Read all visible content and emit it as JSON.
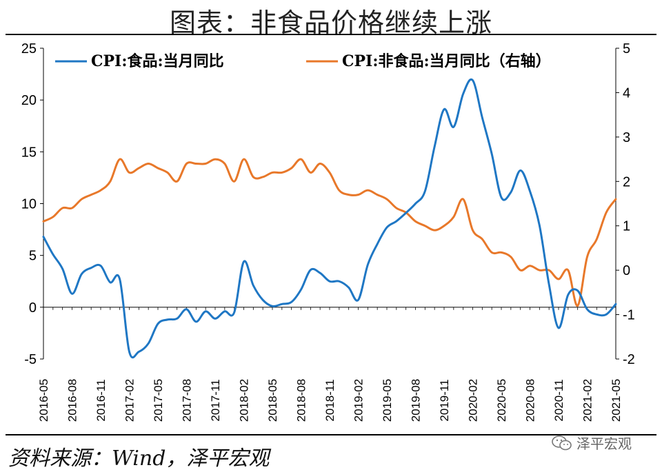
{
  "title": "图表：非食品价格继续上涨",
  "source": "资料来源：Wind，泽平宏观",
  "watermark": "泽平宏观",
  "watermark_icon": "wechat-icon",
  "chart_data": {
    "type": "line",
    "left_axis": {
      "ylim": [
        -5,
        25
      ],
      "ticks": [
        -5,
        0,
        5,
        10,
        15,
        20,
        25
      ]
    },
    "right_axis": {
      "ylim": [
        -2,
        5
      ],
      "ticks": [
        -2,
        -1,
        0,
        1,
        2,
        3,
        4,
        5
      ]
    },
    "x_tick_labels": [
      "2016-05",
      "2016-08",
      "2016-11",
      "2017-02",
      "2017-05",
      "2017-08",
      "2017-11",
      "2018-02",
      "2018-05",
      "2018-08",
      "2018-11",
      "2019-02",
      "2019-05",
      "2019-08",
      "2019-11",
      "2020-02",
      "2020-05",
      "2020-08",
      "2020-11",
      "2021-02",
      "2021-05"
    ],
    "x": [
      "2016-05",
      "2016-06",
      "2016-07",
      "2016-08",
      "2016-09",
      "2016-10",
      "2016-11",
      "2016-12",
      "2017-01",
      "2017-02",
      "2017-03",
      "2017-04",
      "2017-05",
      "2017-06",
      "2017-07",
      "2017-08",
      "2017-09",
      "2017-10",
      "2017-11",
      "2017-12",
      "2018-01",
      "2018-02",
      "2018-03",
      "2018-04",
      "2018-05",
      "2018-06",
      "2018-07",
      "2018-08",
      "2018-09",
      "2018-10",
      "2018-11",
      "2018-12",
      "2019-01",
      "2019-02",
      "2019-03",
      "2019-04",
      "2019-05",
      "2019-06",
      "2019-07",
      "2019-08",
      "2019-09",
      "2019-10",
      "2019-11",
      "2019-12",
      "2020-01",
      "2020-02",
      "2020-03",
      "2020-04",
      "2020-05",
      "2020-06",
      "2020-07",
      "2020-08",
      "2020-09",
      "2020-10",
      "2020-11",
      "2020-12",
      "2021-01",
      "2021-02",
      "2021-03",
      "2021-04",
      "2021-05"
    ],
    "series": [
      {
        "name": "CPI:食品:当月同比",
        "axis": "left",
        "color": "#1f77c4",
        "values": [
          6.8,
          5.1,
          3.7,
          1.3,
          3.2,
          3.8,
          4.0,
          2.4,
          2.7,
          -4.3,
          -4.3,
          -3.5,
          -1.6,
          -1.2,
          -1.1,
          -0.2,
          -1.4,
          -0.4,
          -1.1,
          -0.4,
          -0.5,
          4.4,
          2.1,
          0.7,
          0.1,
          0.3,
          0.5,
          1.7,
          3.6,
          3.3,
          2.5,
          2.5,
          1.9,
          0.7,
          4.1,
          6.1,
          7.7,
          8.3,
          9.1,
          10.0,
          11.2,
          15.5,
          19.1,
          17.4,
          20.6,
          21.9,
          18.3,
          14.8,
          10.6,
          11.1,
          13.2,
          11.2,
          7.9,
          2.2,
          -2.0,
          1.2,
          1.6,
          -0.2,
          -0.7,
          -0.7,
          0.3
        ]
      },
      {
        "name": "CPI:非食品:当月同比（右轴）",
        "axis": "right",
        "color": "#e8782a",
        "values": [
          1.1,
          1.2,
          1.4,
          1.4,
          1.6,
          1.7,
          1.8,
          2.0,
          2.5,
          2.2,
          2.3,
          2.4,
          2.3,
          2.2,
          2.0,
          2.4,
          2.4,
          2.4,
          2.5,
          2.4,
          2.0,
          2.5,
          2.1,
          2.1,
          2.2,
          2.2,
          2.3,
          2.5,
          2.2,
          2.4,
          2.2,
          1.8,
          1.7,
          1.7,
          1.8,
          1.7,
          1.6,
          1.4,
          1.3,
          1.1,
          1.0,
          0.9,
          1.0,
          1.2,
          1.6,
          0.9,
          0.7,
          0.4,
          0.4,
          0.3,
          0.0,
          0.1,
          0.0,
          0.0,
          -0.2,
          0.0,
          -0.8,
          0.3,
          0.7,
          1.3,
          1.6
        ]
      }
    ],
    "grid": false,
    "legend": "top"
  }
}
